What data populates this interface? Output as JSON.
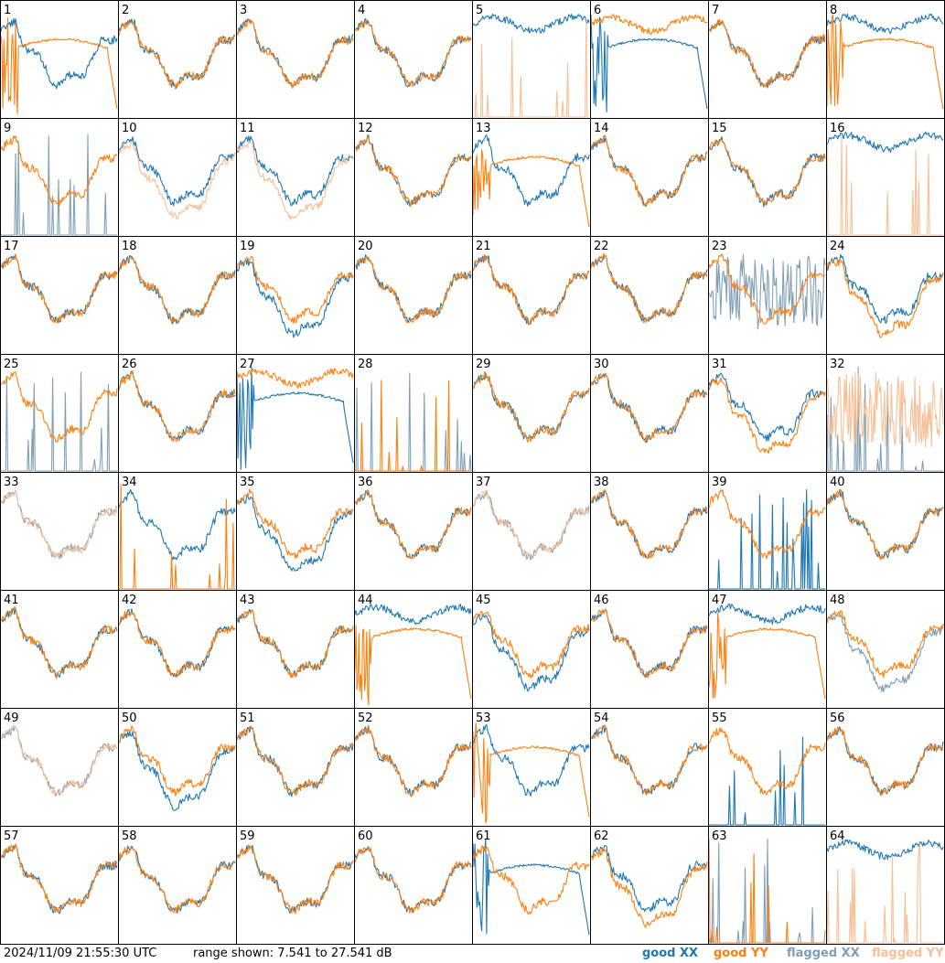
{
  "footer": {
    "timestamp": "2024/11/09 21:55:30 UTC",
    "range": "range shown: 7.541 to 27.541 dB"
  },
  "legend": {
    "good_xx": "good XX",
    "good_yy": "good YY",
    "flagged_xx": "flagged XX",
    "flagged_yy": "flagged YY"
  },
  "colors": {
    "good_xx": "#1f77b4",
    "good_yy": "#ff7f0e",
    "flagged_xx": "#7f9fb8",
    "flagged_yy": "#f7bf95"
  },
  "chart_data": {
    "type": "line",
    "ylim": [
      7.541,
      27.541
    ],
    "units": "dB",
    "grid": false,
    "layout": "8x8 small multiples",
    "panels": [
      {
        "id": "1",
        "xx": {
          "state": "good",
          "shape": "normal"
        },
        "yy": {
          "state": "good",
          "shape": "dropout"
        }
      },
      {
        "id": "2",
        "xx": {
          "state": "good",
          "shape": "normal"
        },
        "yy": {
          "state": "good",
          "shape": "normal"
        }
      },
      {
        "id": "3",
        "xx": {
          "state": "good",
          "shape": "normal"
        },
        "yy": {
          "state": "good",
          "shape": "normal"
        }
      },
      {
        "id": "4",
        "xx": {
          "state": "good",
          "shape": "normal"
        },
        "yy": {
          "state": "good",
          "shape": "normal"
        }
      },
      {
        "id": "5",
        "xx": {
          "state": "good",
          "shape": "high"
        },
        "yy": {
          "state": "flagged",
          "shape": "spikes"
        }
      },
      {
        "id": "6",
        "xx": {
          "state": "good",
          "shape": "dropout"
        },
        "yy": {
          "state": "good",
          "shape": "high"
        }
      },
      {
        "id": "7",
        "xx": {
          "state": "good",
          "shape": "normal"
        },
        "yy": {
          "state": "good",
          "shape": "normal"
        }
      },
      {
        "id": "8",
        "xx": {
          "state": "good",
          "shape": "high"
        },
        "yy": {
          "state": "good",
          "shape": "dropout"
        }
      },
      {
        "id": "9",
        "xx": {
          "state": "flagged",
          "shape": "spikes"
        },
        "yy": {
          "state": "good",
          "shape": "normal"
        }
      },
      {
        "id": "10",
        "xx": {
          "state": "good",
          "shape": "normal"
        },
        "yy": {
          "state": "flagged",
          "shape": "low"
        }
      },
      {
        "id": "11",
        "xx": {
          "state": "good",
          "shape": "normal"
        },
        "yy": {
          "state": "flagged",
          "shape": "low"
        }
      },
      {
        "id": "12",
        "xx": {
          "state": "good",
          "shape": "normal"
        },
        "yy": {
          "state": "good",
          "shape": "normal"
        }
      },
      {
        "id": "13",
        "xx": {
          "state": "good",
          "shape": "normal"
        },
        "yy": {
          "state": "good",
          "shape": "dropout"
        }
      },
      {
        "id": "14",
        "xx": {
          "state": "good",
          "shape": "normal"
        },
        "yy": {
          "state": "good",
          "shape": "normal"
        }
      },
      {
        "id": "15",
        "xx": {
          "state": "good",
          "shape": "normal"
        },
        "yy": {
          "state": "good",
          "shape": "normal"
        }
      },
      {
        "id": "16",
        "xx": {
          "state": "good",
          "shape": "high"
        },
        "yy": {
          "state": "flagged",
          "shape": "spikes"
        }
      },
      {
        "id": "17",
        "xx": {
          "state": "good",
          "shape": "normal"
        },
        "yy": {
          "state": "good",
          "shape": "normal"
        }
      },
      {
        "id": "18",
        "xx": {
          "state": "good",
          "shape": "normal"
        },
        "yy": {
          "state": "good",
          "shape": "normal"
        }
      },
      {
        "id": "19",
        "xx": {
          "state": "good",
          "shape": "low"
        },
        "yy": {
          "state": "good",
          "shape": "normal"
        }
      },
      {
        "id": "20",
        "xx": {
          "state": "good",
          "shape": "normal"
        },
        "yy": {
          "state": "good",
          "shape": "normal"
        }
      },
      {
        "id": "21",
        "xx": {
          "state": "good",
          "shape": "normal"
        },
        "yy": {
          "state": "good",
          "shape": "normal"
        }
      },
      {
        "id": "22",
        "xx": {
          "state": "good",
          "shape": "normal"
        },
        "yy": {
          "state": "good",
          "shape": "normal"
        }
      },
      {
        "id": "23",
        "xx": {
          "state": "flagged",
          "shape": "noisy"
        },
        "yy": {
          "state": "good",
          "shape": "normal"
        }
      },
      {
        "id": "24",
        "xx": {
          "state": "good",
          "shape": "normal"
        },
        "yy": {
          "state": "good",
          "shape": "low"
        }
      },
      {
        "id": "25",
        "xx": {
          "state": "flagged",
          "shape": "spikes"
        },
        "yy": {
          "state": "good",
          "shape": "normal"
        }
      },
      {
        "id": "26",
        "xx": {
          "state": "good",
          "shape": "normal"
        },
        "yy": {
          "state": "good",
          "shape": "normal"
        }
      },
      {
        "id": "27",
        "xx": {
          "state": "good",
          "shape": "dropout"
        },
        "yy": {
          "state": "good",
          "shape": "high"
        }
      },
      {
        "id": "28",
        "xx": {
          "state": "flagged",
          "shape": "spikes"
        },
        "yy": {
          "state": "good",
          "shape": "spikes"
        }
      },
      {
        "id": "29",
        "xx": {
          "state": "good",
          "shape": "normal"
        },
        "yy": {
          "state": "good",
          "shape": "normal"
        }
      },
      {
        "id": "30",
        "xx": {
          "state": "good",
          "shape": "normal"
        },
        "yy": {
          "state": "good",
          "shape": "normal"
        }
      },
      {
        "id": "31",
        "xx": {
          "state": "good",
          "shape": "normal"
        },
        "yy": {
          "state": "good",
          "shape": "low"
        }
      },
      {
        "id": "32",
        "xx": {
          "state": "flagged",
          "shape": "spikes"
        },
        "yy": {
          "state": "flagged",
          "shape": "noisy"
        }
      },
      {
        "id": "33",
        "xx": {
          "state": "flagged",
          "shape": "normal"
        },
        "yy": {
          "state": "flagged",
          "shape": "normal"
        }
      },
      {
        "id": "34",
        "xx": {
          "state": "good",
          "shape": "normal"
        },
        "yy": {
          "state": "good",
          "shape": "spikes"
        }
      },
      {
        "id": "35",
        "xx": {
          "state": "good",
          "shape": "low"
        },
        "yy": {
          "state": "good",
          "shape": "normal"
        }
      },
      {
        "id": "36",
        "xx": {
          "state": "good",
          "shape": "normal"
        },
        "yy": {
          "state": "good",
          "shape": "normal"
        }
      },
      {
        "id": "37",
        "xx": {
          "state": "flagged",
          "shape": "normal"
        },
        "yy": {
          "state": "flagged",
          "shape": "normal"
        }
      },
      {
        "id": "38",
        "xx": {
          "state": "good",
          "shape": "normal"
        },
        "yy": {
          "state": "good",
          "shape": "normal"
        }
      },
      {
        "id": "39",
        "xx": {
          "state": "good",
          "shape": "spikes"
        },
        "yy": {
          "state": "good",
          "shape": "normal"
        }
      },
      {
        "id": "40",
        "xx": {
          "state": "good",
          "shape": "normal"
        },
        "yy": {
          "state": "good",
          "shape": "normal"
        }
      },
      {
        "id": "41",
        "xx": {
          "state": "good",
          "shape": "normal"
        },
        "yy": {
          "state": "good",
          "shape": "normal"
        }
      },
      {
        "id": "42",
        "xx": {
          "state": "good",
          "shape": "normal"
        },
        "yy": {
          "state": "good",
          "shape": "normal"
        }
      },
      {
        "id": "43",
        "xx": {
          "state": "good",
          "shape": "normal"
        },
        "yy": {
          "state": "good",
          "shape": "normal"
        }
      },
      {
        "id": "44",
        "xx": {
          "state": "good",
          "shape": "high"
        },
        "yy": {
          "state": "good",
          "shape": "dropout"
        }
      },
      {
        "id": "45",
        "xx": {
          "state": "good",
          "shape": "low"
        },
        "yy": {
          "state": "good",
          "shape": "normal"
        }
      },
      {
        "id": "46",
        "xx": {
          "state": "good",
          "shape": "normal"
        },
        "yy": {
          "state": "good",
          "shape": "normal"
        }
      },
      {
        "id": "47",
        "xx": {
          "state": "good",
          "shape": "high"
        },
        "yy": {
          "state": "good",
          "shape": "dropout"
        }
      },
      {
        "id": "48",
        "xx": {
          "state": "flagged",
          "shape": "low"
        },
        "yy": {
          "state": "good",
          "shape": "normal"
        }
      },
      {
        "id": "49",
        "xx": {
          "state": "flagged",
          "shape": "normal"
        },
        "yy": {
          "state": "flagged",
          "shape": "normal"
        }
      },
      {
        "id": "50",
        "xx": {
          "state": "good",
          "shape": "low"
        },
        "yy": {
          "state": "good",
          "shape": "normal"
        }
      },
      {
        "id": "51",
        "xx": {
          "state": "good",
          "shape": "normal"
        },
        "yy": {
          "state": "good",
          "shape": "normal"
        }
      },
      {
        "id": "52",
        "xx": {
          "state": "good",
          "shape": "normal"
        },
        "yy": {
          "state": "good",
          "shape": "normal"
        }
      },
      {
        "id": "53",
        "xx": {
          "state": "good",
          "shape": "normal"
        },
        "yy": {
          "state": "good",
          "shape": "dropout"
        }
      },
      {
        "id": "54",
        "xx": {
          "state": "good",
          "shape": "normal"
        },
        "yy": {
          "state": "good",
          "shape": "normal"
        }
      },
      {
        "id": "55",
        "xx": {
          "state": "good",
          "shape": "spikes"
        },
        "yy": {
          "state": "good",
          "shape": "normal"
        }
      },
      {
        "id": "56",
        "xx": {
          "state": "good",
          "shape": "normal"
        },
        "yy": {
          "state": "good",
          "shape": "normal"
        }
      },
      {
        "id": "57",
        "xx": {
          "state": "good",
          "shape": "normal"
        },
        "yy": {
          "state": "good",
          "shape": "normal"
        }
      },
      {
        "id": "58",
        "xx": {
          "state": "good",
          "shape": "normal"
        },
        "yy": {
          "state": "good",
          "shape": "normal"
        }
      },
      {
        "id": "59",
        "xx": {
          "state": "good",
          "shape": "normal"
        },
        "yy": {
          "state": "good",
          "shape": "normal"
        }
      },
      {
        "id": "60",
        "xx": {
          "state": "good",
          "shape": "normal"
        },
        "yy": {
          "state": "good",
          "shape": "normal"
        }
      },
      {
        "id": "61",
        "xx": {
          "state": "good",
          "shape": "dropout"
        },
        "yy": {
          "state": "good",
          "shape": "normal"
        }
      },
      {
        "id": "62",
        "xx": {
          "state": "good",
          "shape": "normal"
        },
        "yy": {
          "state": "good",
          "shape": "low"
        }
      },
      {
        "id": "63",
        "xx": {
          "state": "flagged",
          "shape": "spikes"
        },
        "yy": {
          "state": "good",
          "shape": "spikes"
        }
      },
      {
        "id": "64",
        "xx": {
          "state": "good",
          "shape": "high"
        },
        "yy": {
          "state": "flagged",
          "shape": "spikes"
        }
      }
    ]
  }
}
